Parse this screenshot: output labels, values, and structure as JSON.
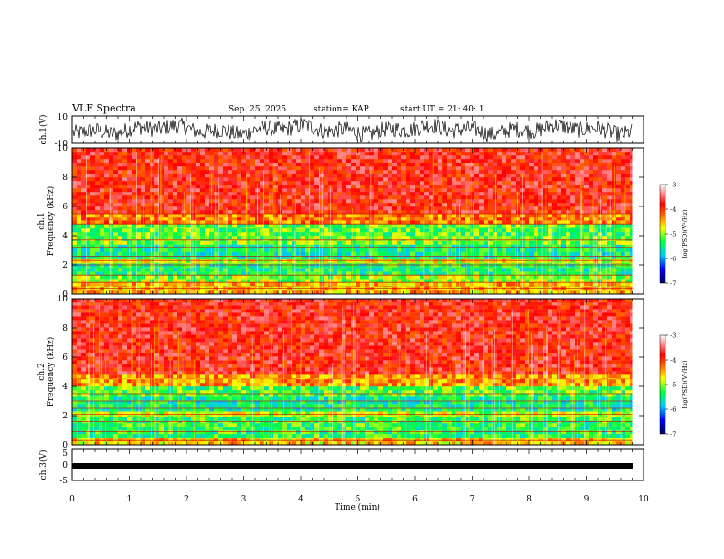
{
  "header": {
    "title": "VLF Spectra",
    "date": "Sep. 25, 2025",
    "station": "station= KAP",
    "start": "start  UT  =   21: 40: 1"
  },
  "chart_data": {
    "type": "heatmap",
    "x": {
      "label": "Time  (min)",
      "range": [
        0,
        10
      ],
      "ticks": [
        "0",
        "1",
        "2",
        "3",
        "4",
        "5",
        "6",
        "7",
        "8",
        "9",
        "10"
      ],
      "data_end": 9.8
    },
    "panels": [
      {
        "id": "ch1-waveform",
        "kind": "line",
        "ylabel": "ch.1(V)",
        "ylim": [
          -10,
          10
        ],
        "yticks": [
          "10",
          "-10"
        ],
        "description_values": "noisy voltage trace between about -8 and 9 V"
      },
      {
        "id": "ch1-spectrogram",
        "kind": "spectrogram",
        "ylabel": "ch.1\nFrequency  (kHz)",
        "ylim": [
          0,
          10
        ],
        "yticks": [
          "0",
          "2",
          "4",
          "6",
          "8",
          "10"
        ],
        "bands": [
          {
            "from": 0,
            "to": 0.8,
            "level": -4.5
          },
          {
            "from": 0.8,
            "to": 1.3,
            "level": -5.0
          },
          {
            "from": 1.3,
            "to": 2.1,
            "level": -5.4
          },
          {
            "from": 2.1,
            "to": 2.4,
            "level": -4.8
          },
          {
            "from": 2.4,
            "to": 3.4,
            "level": -5.5
          },
          {
            "from": 3.4,
            "to": 4.0,
            "level": -5.1
          },
          {
            "from": 4.0,
            "to": 4.8,
            "level": -5.2
          },
          {
            "from": 4.8,
            "to": 5.5,
            "level": -4.3
          },
          {
            "from": 5.5,
            "to": 10,
            "level": -3.8
          }
        ],
        "lines_khz": [
          0.4,
          0.8,
          1.3,
          2.0,
          2.3,
          2.6,
          3.2,
          3.7,
          4.8,
          5.5
        ]
      },
      {
        "id": "ch2-spectrogram",
        "kind": "spectrogram",
        "ylabel": "ch.2\nFrequency  (kHz)",
        "ylim": [
          0,
          10
        ],
        "yticks": [
          "0",
          "2",
          "4",
          "6",
          "8",
          "10"
        ],
        "bands": [
          {
            "from": 0,
            "to": 0.5,
            "level": -4.6
          },
          {
            "from": 0.5,
            "to": 1.9,
            "level": -5.3
          },
          {
            "from": 1.9,
            "to": 2.3,
            "level": -4.9
          },
          {
            "from": 2.3,
            "to": 3.3,
            "level": -5.5
          },
          {
            "from": 3.3,
            "to": 4.0,
            "level": -5.2
          },
          {
            "from": 4.0,
            "to": 4.8,
            "level": -4.4
          },
          {
            "from": 4.8,
            "to": 10,
            "level": -3.8
          }
        ],
        "lines_khz": [
          0.3,
          0.9,
          1.6,
          2.1,
          2.5,
          3.0,
          3.5,
          4.1
        ]
      },
      {
        "id": "ch3-waveform",
        "kind": "line",
        "ylabel": "ch.3(V)",
        "ylim": [
          -5,
          5
        ],
        "yticks": [
          "5",
          "0",
          "-5"
        ],
        "description_values": "near-constant band around -1.5 V"
      }
    ],
    "colorbar": {
      "label": "log(PSD)(V²/Hz)",
      "range": [
        -7,
        -3
      ],
      "ticks": [
        "-3",
        "-4",
        "-5",
        "-6",
        "-7"
      ],
      "colors": [
        "#000060",
        "#0000ff",
        "#00c8ff",
        "#00ff40",
        "#ffff00",
        "#ff7000",
        "#ff0000",
        "#ffffff"
      ]
    }
  }
}
